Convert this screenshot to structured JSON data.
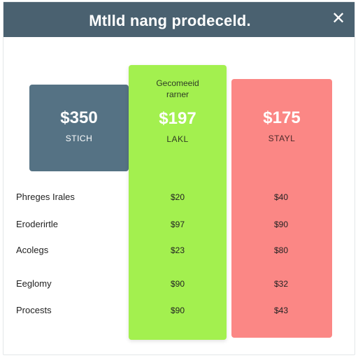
{
  "dialog": {
    "title": "Mtlld nang prodeceld.",
    "close_glyph": "✕"
  },
  "plans": [
    {
      "price": "$350",
      "name": "STICH",
      "color": "#557284"
    },
    {
      "badge_line1": "Gecomeeid",
      "badge_line2": "rarner",
      "price": "$197",
      "name": "LAKL",
      "color": "#a3f04f"
    },
    {
      "price": "$175",
      "name": "STAYL",
      "color": "#fb8785"
    }
  ],
  "rows": [
    {
      "label": "Phreges Irales",
      "col2": "$20",
      "col3": "$40"
    },
    {
      "label": "Eroderirtle",
      "col2": "$97",
      "col3": "$90"
    },
    {
      "label": "Acolegs",
      "col2": "$23",
      "col3": "$80"
    },
    {
      "label": "Eeglomy",
      "col2": "$90",
      "col3": "$32"
    },
    {
      "label": "Procests",
      "col2": "$90",
      "col3": "$43"
    }
  ]
}
